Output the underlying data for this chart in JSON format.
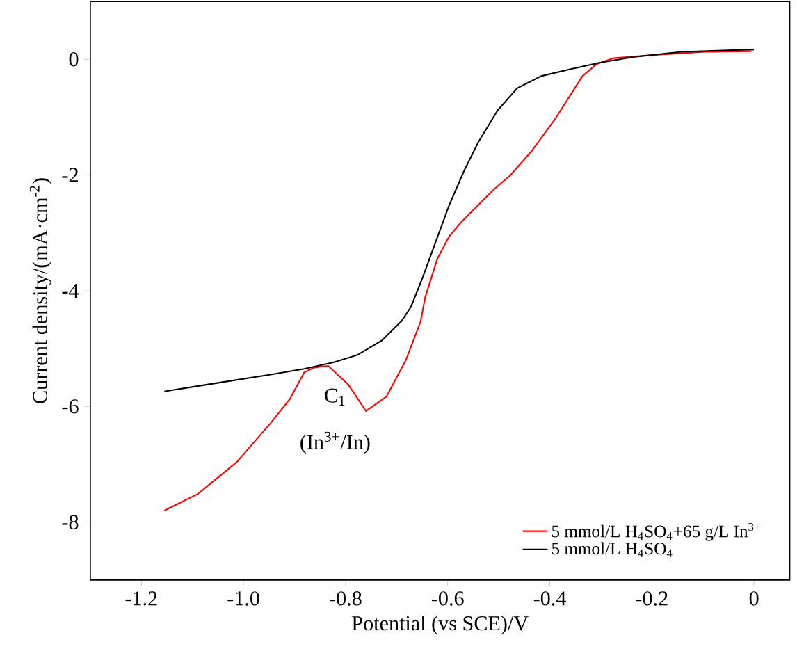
{
  "chart_data": {
    "type": "line",
    "xlabel": "Potential (vs SCE)/V",
    "ylabel": "Current density/(mA·cm$^{-2}$)",
    "xlim": [
      -1.3,
      0.07
    ],
    "ylim": [
      -9,
      1
    ],
    "xticks": [
      -1.2,
      {
        "value": -1.0,
        "label": "-1.0"
      },
      -0.8,
      -0.6,
      -0.4,
      -0.2,
      0
    ],
    "yticks": [
      -8,
      -6,
      -4,
      -2,
      0
    ],
    "legend": "bottom right",
    "grid": false,
    "marker": "none",
    "line_style": "solid",
    "annotations": [
      "C$_{1}$",
      "(In$^{3+}$/In)"
    ],
    "series": [
      {
        "name": "5 mmol/L H$_{4}$SO$_{4}$+65 g/L In$^{3+}$",
        "color": "#ff0000",
        "x": [
          -1.155,
          -1.089,
          -1.013,
          -0.947,
          -0.909,
          -0.881,
          -0.862,
          -0.834,
          -0.795,
          -0.76,
          -0.72,
          -0.682,
          -0.653,
          -0.644,
          -0.62,
          -0.597,
          -0.573,
          -0.511,
          -0.478,
          -0.436,
          -0.388,
          -0.336,
          -0.308,
          -0.275,
          -0.189,
          -0.095,
          -0.005
        ],
        "values": [
          -7.8,
          -7.51,
          -6.96,
          -6.29,
          -5.87,
          -5.41,
          -5.33,
          -5.3,
          -5.62,
          -6.08,
          -5.83,
          -5.2,
          -4.53,
          -4.11,
          -3.44,
          -3.06,
          -2.81,
          -2.26,
          -2.01,
          -1.59,
          -1.01,
          -0.29,
          -0.08,
          0.02,
          0.08,
          0.13,
          0.14
        ]
      },
      {
        "name": "5 mmol/L H$_{4}$SO$_{4}$",
        "color": "#000000",
        "x": [
          -1.155,
          -1.041,
          -0.947,
          -0.881,
          -0.824,
          -0.777,
          -0.729,
          -0.691,
          -0.672,
          -0.649,
          -0.625,
          -0.597,
          -0.568,
          -0.54,
          -0.502,
          -0.464,
          -0.417,
          -0.36,
          -0.303,
          -0.237,
          -0.142,
          0
        ],
        "values": [
          -5.74,
          -5.58,
          -5.45,
          -5.35,
          -5.24,
          -5.11,
          -4.86,
          -4.53,
          -4.28,
          -3.77,
          -3.19,
          -2.52,
          -1.93,
          -1.43,
          -0.88,
          -0.5,
          -0.29,
          -0.17,
          -0.06,
          0.04,
          0.13,
          0.17
        ]
      }
    ]
  }
}
